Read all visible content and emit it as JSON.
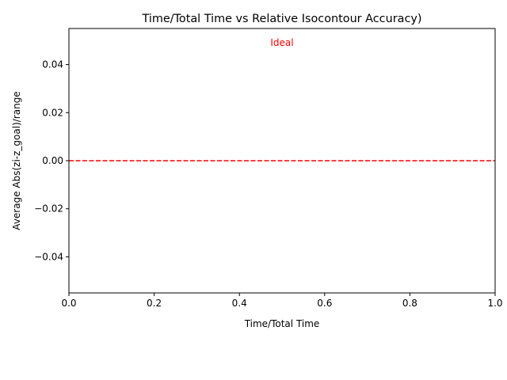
{
  "chart_data": {
    "type": "line",
    "title": "Time/Total Time vs Relative Isocontour Accuracy)",
    "xlabel": "Time/Total Time",
    "ylabel": "Average Abs(zi-z_goal)/range",
    "xlim": [
      0.0,
      1.0
    ],
    "ylim": [
      -0.055,
      0.055
    ],
    "xticks": [
      0.0,
      0.2,
      0.4,
      0.6,
      0.8,
      1.0
    ],
    "xtick_labels": [
      "0.0",
      "0.2",
      "0.4",
      "0.6",
      "0.8",
      "1.0"
    ],
    "yticks": [
      -0.04,
      -0.02,
      0.0,
      0.02,
      0.04
    ],
    "ytick_labels": [
      "−0.04",
      "−0.02",
      "0.00",
      "0.02",
      "0.04"
    ],
    "grid": false,
    "series": [],
    "reference_lines": [
      {
        "orientation": "horizontal",
        "y": 0.0,
        "style": "dashed",
        "color": "#ff0000"
      }
    ],
    "annotations": [
      {
        "text": "Ideal",
        "x": 0.5,
        "y": 0.049,
        "color": "#ff0000"
      }
    ]
  }
}
